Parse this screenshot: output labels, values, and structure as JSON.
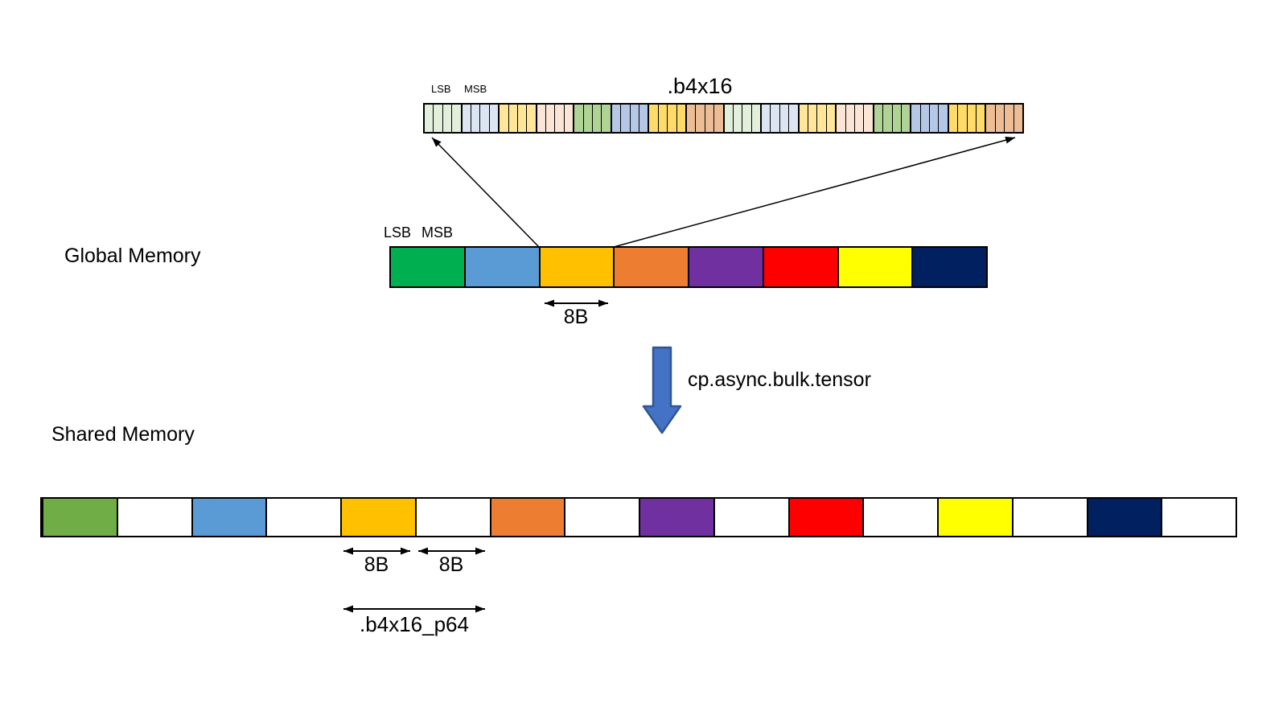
{
  "page": {
    "background": "#FFFFFF"
  },
  "expanded_bar": {
    "title": ".b4x16",
    "lsb_label": "LSB",
    "msb_label": "MSB",
    "cells_per_group": 4,
    "group_repeats": 2,
    "group_colors": [
      "#E2EFDA",
      "#DCE6F3",
      "#FFE699",
      "#FBE5D6",
      "#AFD295",
      "#B4C7E7",
      "#FFDB69",
      "#EDBE96"
    ]
  },
  "global_memory": {
    "label": "Global Memory",
    "lsb_label": "LSB",
    "msb_label": "MSB",
    "cell_colors": [
      "#00B050",
      "#5B9BD5",
      "#FFC000",
      "#ED7D31",
      "#7030A0",
      "#FF0000",
      "#FFFF00",
      "#002060"
    ],
    "chunk_size_label": "8B"
  },
  "transfer": {
    "instruction": "cp.async.bulk.tensor",
    "arrow_fill": "#4472C4",
    "arrow_stroke": "#2F5597"
  },
  "shared_memory": {
    "label": "Shared Memory",
    "cell_colors": [
      "#70AD47",
      "#FFFFFF",
      "#5B9BD5",
      "#FFFFFF",
      "#FFC000",
      "#FFFFFF",
      "#ED7D31",
      "#FFFFFF",
      "#7030A0",
      "#FFFFFF",
      "#FF0000",
      "#FFFFFF",
      "#FFFF00",
      "#FFFFFF",
      "#002060",
      "#FFFFFF"
    ],
    "data_chunk_label": "8B",
    "padding_chunk_label": "8B",
    "pair_label": ".b4x16_p64"
  }
}
